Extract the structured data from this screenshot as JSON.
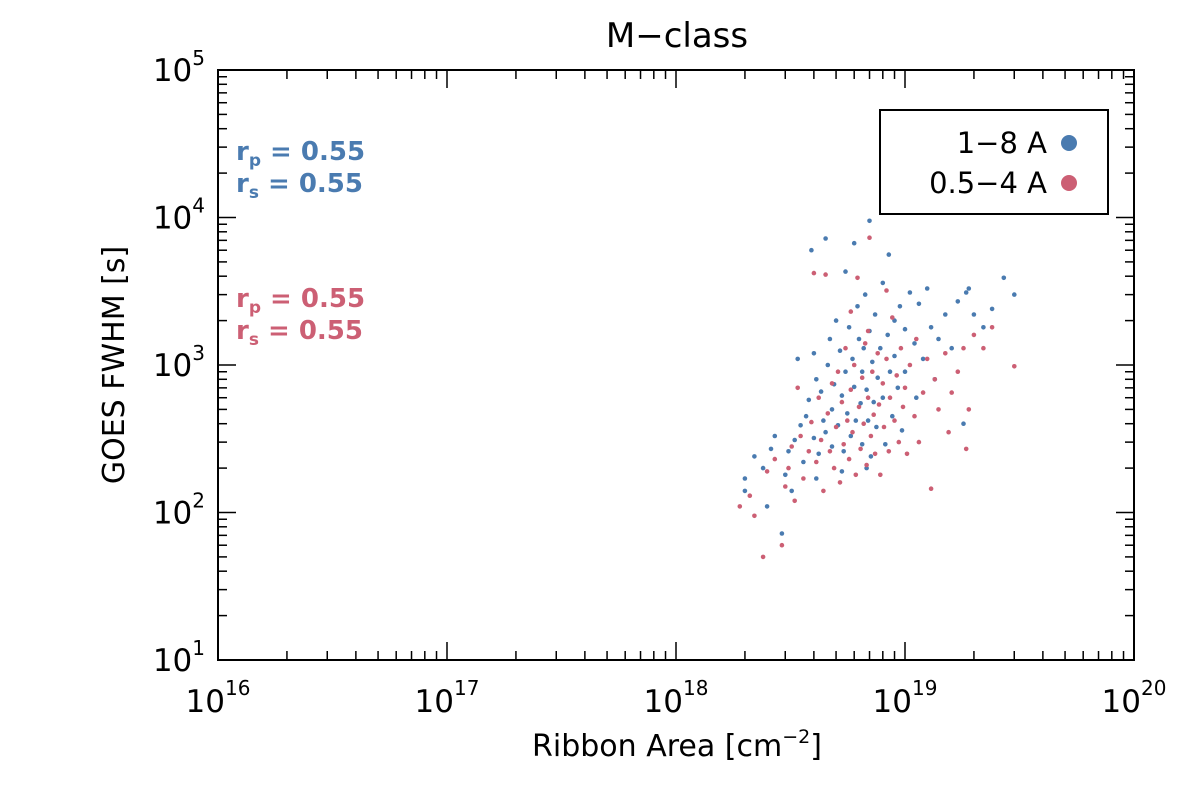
{
  "chart_data": {
    "type": "scatter",
    "title": "M−class",
    "xlabel": "Ribbon Area",
    "xlabel_unit": "cm",
    "xlabel_unit_exponent": "−2",
    "ylabel": "GOES FWHM [s]",
    "xscale": "log",
    "yscale": "log",
    "xlim": [
      1e+16,
      1e+20
    ],
    "ylim": [
      10,
      100000
    ],
    "x_ticks": [
      {
        "value": 1e+16,
        "base": "10",
        "exp": "16"
      },
      {
        "value": 1e+17,
        "base": "10",
        "exp": "17"
      },
      {
        "value": 1e+18,
        "base": "10",
        "exp": "18"
      },
      {
        "value": 1e+19,
        "base": "10",
        "exp": "19"
      },
      {
        "value": 1e+20,
        "base": "10",
        "exp": "20"
      }
    ],
    "y_ticks": [
      {
        "value": 10,
        "base": "10",
        "exp": "1"
      },
      {
        "value": 100,
        "base": "10",
        "exp": "2"
      },
      {
        "value": 1000,
        "base": "10",
        "exp": "3"
      },
      {
        "value": 10000,
        "base": "10",
        "exp": "4"
      },
      {
        "value": 100000,
        "base": "10",
        "exp": "5"
      }
    ],
    "grid": false,
    "legend": {
      "position": "top-right",
      "entries": [
        {
          "label": "1−8 A",
          "color": "#4a7bb0"
        },
        {
          "label": "0.5−4 A",
          "color": "#cc5f74"
        }
      ]
    },
    "annotations": [
      {
        "sym": "r",
        "sub": "p",
        "text": " = 0.55",
        "color": "#4a7bb0"
      },
      {
        "sym": "r",
        "sub": "s",
        "text": " = 0.55",
        "color": "#4a7bb0"
      },
      {
        "sym": "r",
        "sub": "p",
        "text": " = 0.55",
        "color": "#cc5f74"
      },
      {
        "sym": "r",
        "sub": "s",
        "text": " = 0.55",
        "color": "#cc5f74"
      }
    ],
    "series": [
      {
        "name": "1−8 A",
        "color": "#4a7bb0",
        "points": [
          [
            2e+18,
            140
          ],
          [
            2e+18,
            170
          ],
          [
            2.2e+18,
            240
          ],
          [
            2.4e+18,
            200
          ],
          [
            2.5e+18,
            110
          ],
          [
            2.6e+18,
            270
          ],
          [
            2.7e+18,
            330
          ],
          [
            2.9e+18,
            72
          ],
          [
            3e+18,
            180
          ],
          [
            3.1e+18,
            260
          ],
          [
            3.3e+18,
            310
          ],
          [
            3.4e+18,
            1100
          ],
          [
            3.5e+18,
            390
          ],
          [
            3.6e+18,
            220
          ],
          [
            3.7e+18,
            450
          ],
          [
            3.8e+18,
            580
          ],
          [
            3.9e+18,
            6000
          ],
          [
            4e+18,
            1200
          ],
          [
            4e+18,
            320
          ],
          [
            4.1e+18,
            800
          ],
          [
            4.2e+18,
            250
          ],
          [
            4.3e+18,
            660
          ],
          [
            4.4e+18,
            420
          ],
          [
            4.5e+18,
            7200
          ],
          [
            4.5e+18,
            350
          ],
          [
            4.6e+18,
            1000
          ],
          [
            4.7e+18,
            1500
          ],
          [
            4.8e+18,
            500
          ],
          [
            4.8e+18,
            280
          ],
          [
            4.9e+18,
            740
          ],
          [
            5e+18,
            2000
          ],
          [
            5.1e+18,
            390
          ],
          [
            5.2e+18,
            1250
          ],
          [
            5.3e+18,
            620
          ],
          [
            5.4e+18,
            260
          ],
          [
            5.5e+18,
            4300
          ],
          [
            5.5e+18,
            900
          ],
          [
            5.6e+18,
            470
          ],
          [
            5.7e+18,
            1800
          ],
          [
            5.8e+18,
            330
          ],
          [
            5.9e+18,
            1100
          ],
          [
            6e+18,
            6700
          ],
          [
            6e+18,
            710
          ],
          [
            6.1e+18,
            420
          ],
          [
            6.2e+18,
            2500
          ],
          [
            6.3e+18,
            1500
          ],
          [
            6.4e+18,
            550
          ],
          [
            6.5e+18,
            900
          ],
          [
            6.5e+18,
            290
          ],
          [
            6.6e+18,
            1300
          ],
          [
            6.7e+18,
            3000
          ],
          [
            6.8e+18,
            680
          ],
          [
            6.9e+18,
            420
          ],
          [
            7e+18,
            1700
          ],
          [
            7e+18,
            9500
          ],
          [
            7.1e+18,
            240
          ],
          [
            7.2e+18,
            1050
          ],
          [
            7.3e+18,
            560
          ],
          [
            7.4e+18,
            2200
          ],
          [
            7.5e+18,
            380
          ],
          [
            7.6e+18,
            820
          ],
          [
            7.8e+18,
            1300
          ],
          [
            8e+18,
            3600
          ],
          [
            8e+18,
            600
          ],
          [
            8.2e+18,
            290
          ],
          [
            8.4e+18,
            1600
          ],
          [
            8.5e+18,
            5600
          ],
          [
            8.6e+18,
            900
          ],
          [
            8.8e+18,
            450
          ],
          [
            9e+18,
            2000
          ],
          [
            9e+18,
            1150
          ],
          [
            9.3e+18,
            700
          ],
          [
            9.5e+18,
            2500
          ],
          [
            9.7e+18,
            360
          ],
          [
            1e+19,
            1750
          ],
          [
            1e+19,
            900
          ],
          [
            1.05e+19,
            3100
          ],
          [
            1.1e+19,
            1400
          ],
          [
            1.12e+19,
            600
          ],
          [
            1.15e+19,
            2600
          ],
          [
            1.2e+19,
            1100
          ],
          [
            1.25e+19,
            3300
          ],
          [
            1.3e+19,
            1800
          ],
          [
            1.35e+19,
            800
          ],
          [
            1.4e+19,
            1500
          ],
          [
            1.5e+19,
            2200
          ],
          [
            1.6e+19,
            1300
          ],
          [
            1.7e+19,
            2700
          ],
          [
            1.8e+19,
            400
          ],
          [
            1.85e+19,
            3100
          ],
          [
            1.9e+19,
            3300
          ],
          [
            2e+19,
            2200
          ],
          [
            2.2e+19,
            1800
          ],
          [
            2.4e+19,
            2400
          ],
          [
            2.7e+19,
            3900
          ],
          [
            3e+19,
            3000
          ],
          [
            5.3e+18,
            190
          ],
          [
            6.8e+18,
            200
          ],
          [
            4.1e+18,
            170
          ],
          [
            3.2e+18,
            140
          ]
        ]
      },
      {
        "name": "0.5−4 A",
        "color": "#cc5f74",
        "points": [
          [
            1.9e+18,
            110
          ],
          [
            2.1e+18,
            130
          ],
          [
            2.2e+18,
            95
          ],
          [
            2.4e+18,
            50
          ],
          [
            2.5e+18,
            190
          ],
          [
            2.7e+18,
            230
          ],
          [
            2.9e+18,
            60
          ],
          [
            3e+18,
            150
          ],
          [
            3.1e+18,
            200
          ],
          [
            3.2e+18,
            280
          ],
          [
            3.3e+18,
            120
          ],
          [
            3.5e+18,
            330
          ],
          [
            3.6e+18,
            170
          ],
          [
            3.8e+18,
            260
          ],
          [
            3.9e+18,
            410
          ],
          [
            4e+18,
            4200
          ],
          [
            4.1e+18,
            220
          ],
          [
            4.2e+18,
            600
          ],
          [
            4.3e+18,
            310
          ],
          [
            4.4e+18,
            140
          ],
          [
            4.5e+18,
            4100
          ],
          [
            4.6e+18,
            470
          ],
          [
            4.7e+18,
            260
          ],
          [
            4.8e+18,
            750
          ],
          [
            4.9e+18,
            200
          ],
          [
            5e+18,
            380
          ],
          [
            5.1e+18,
            900
          ],
          [
            5.2e+18,
            160
          ],
          [
            5.3e+18,
            560
          ],
          [
            5.4e+18,
            290
          ],
          [
            5.5e+18,
            1300
          ],
          [
            5.6e+18,
            420
          ],
          [
            5.7e+18,
            230
          ],
          [
            5.8e+18,
            680
          ],
          [
            5.9e+18,
            350
          ],
          [
            6e+18,
            1000
          ],
          [
            6.1e+18,
            180
          ],
          [
            6.2e+18,
            3900
          ],
          [
            6.3e+18,
            520
          ],
          [
            6.4e+18,
            270
          ],
          [
            6.5e+18,
            820
          ],
          [
            6.6e+18,
            400
          ],
          [
            6.7e+18,
            1400
          ],
          [
            6.8e+18,
            210
          ],
          [
            6.9e+18,
            600
          ],
          [
            7e+18,
            7300
          ],
          [
            7.1e+18,
            330
          ],
          [
            7.2e+18,
            900
          ],
          [
            7.3e+18,
            460
          ],
          [
            7.4e+18,
            250
          ],
          [
            7.6e+18,
            1200
          ],
          [
            7.7e+18,
            540
          ],
          [
            7.8e+18,
            180
          ],
          [
            8e+18,
            750
          ],
          [
            8.1e+18,
            380
          ],
          [
            8.3e+18,
            1100
          ],
          [
            8.5e+18,
            260
          ],
          [
            8.6e+18,
            600
          ],
          [
            8.8e+18,
            2100
          ],
          [
            9e+18,
            420
          ],
          [
            9.2e+18,
            850
          ],
          [
            9.4e+18,
            300
          ],
          [
            9.6e+18,
            1300
          ],
          [
            9.8e+18,
            520
          ],
          [
            1e+19,
            700
          ],
          [
            1.02e+19,
            250
          ],
          [
            1.05e+19,
            1000
          ],
          [
            1.1e+19,
            450
          ],
          [
            1.12e+19,
            1500
          ],
          [
            1.15e+19,
            300
          ],
          [
            1.2e+19,
            650
          ],
          [
            1.25e+19,
            1100
          ],
          [
            1.3e+19,
            145
          ],
          [
            1.35e+19,
            800
          ],
          [
            1.4e+19,
            500
          ],
          [
            1.5e+19,
            1200
          ],
          [
            1.55e+19,
            350
          ],
          [
            1.6e+19,
            650
          ],
          [
            1.7e+19,
            900
          ],
          [
            1.8e+19,
            1300
          ],
          [
            1.85e+19,
            270
          ],
          [
            1.9e+19,
            500
          ],
          [
            2e+19,
            1600
          ],
          [
            2.2e+19,
            1300
          ],
          [
            2.4e+19,
            1800
          ],
          [
            3e+19,
            980
          ],
          [
            3.4e+18,
            700
          ],
          [
            5.8e+18,
            2300
          ],
          [
            6.9e+18,
            1700
          ],
          [
            8.3e+18,
            3200
          ]
        ]
      }
    ]
  }
}
